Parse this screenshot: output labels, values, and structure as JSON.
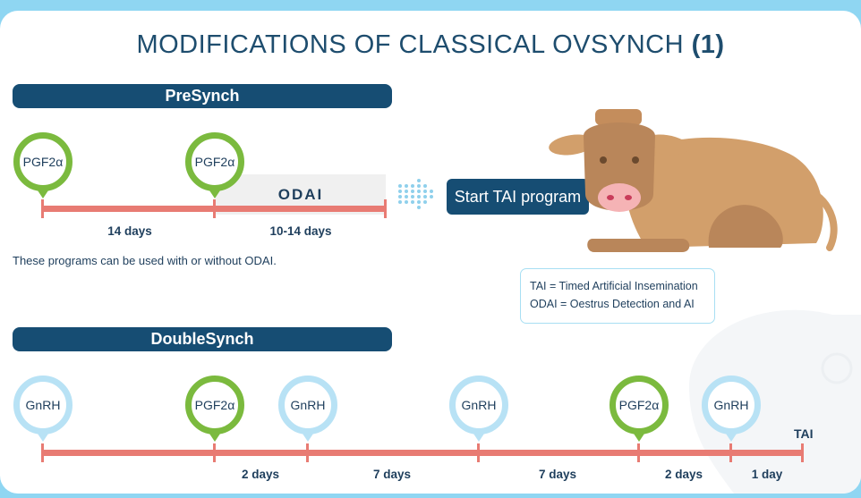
{
  "title": {
    "main": "MODIFICATIONS OF CLASSICAL OVSYNCH",
    "num": "(1)"
  },
  "presynch": {
    "banner": "PreSynch",
    "pins": [
      {
        "label": "PGF2α",
        "type": "green"
      },
      {
        "label": "PGF2α",
        "type": "green"
      }
    ],
    "odai_label": "ODAI",
    "days": [
      "14 days",
      "10-14 days"
    ],
    "note": "These programs can be used with or without ODAI.",
    "start_button": "Start TAI program"
  },
  "legend": {
    "tai": "TAI = Timed Artificial Insemination",
    "odai": "ODAI = Oestrus Detection and AI"
  },
  "doublesynch": {
    "banner": "DoubleSynch",
    "pins": [
      {
        "label": "GnRH",
        "type": "blue"
      },
      {
        "label": "PGF2α",
        "type": "green"
      },
      {
        "label": "GnRH",
        "type": "blue"
      },
      {
        "label": "GnRH",
        "type": "blue"
      },
      {
        "label": "PGF2α",
        "type": "green"
      },
      {
        "label": "GnRH",
        "type": "blue"
      }
    ],
    "days": [
      "2 days",
      "7 days",
      "7 days",
      "2 days",
      "1 day"
    ],
    "end_label": "TAI"
  },
  "colors": {
    "navy": "#164d73",
    "green": "#7bba3e",
    "light_blue": "#b8e2f5",
    "timeline_red": "#e87b73",
    "cow_body": "#d29f6b"
  }
}
